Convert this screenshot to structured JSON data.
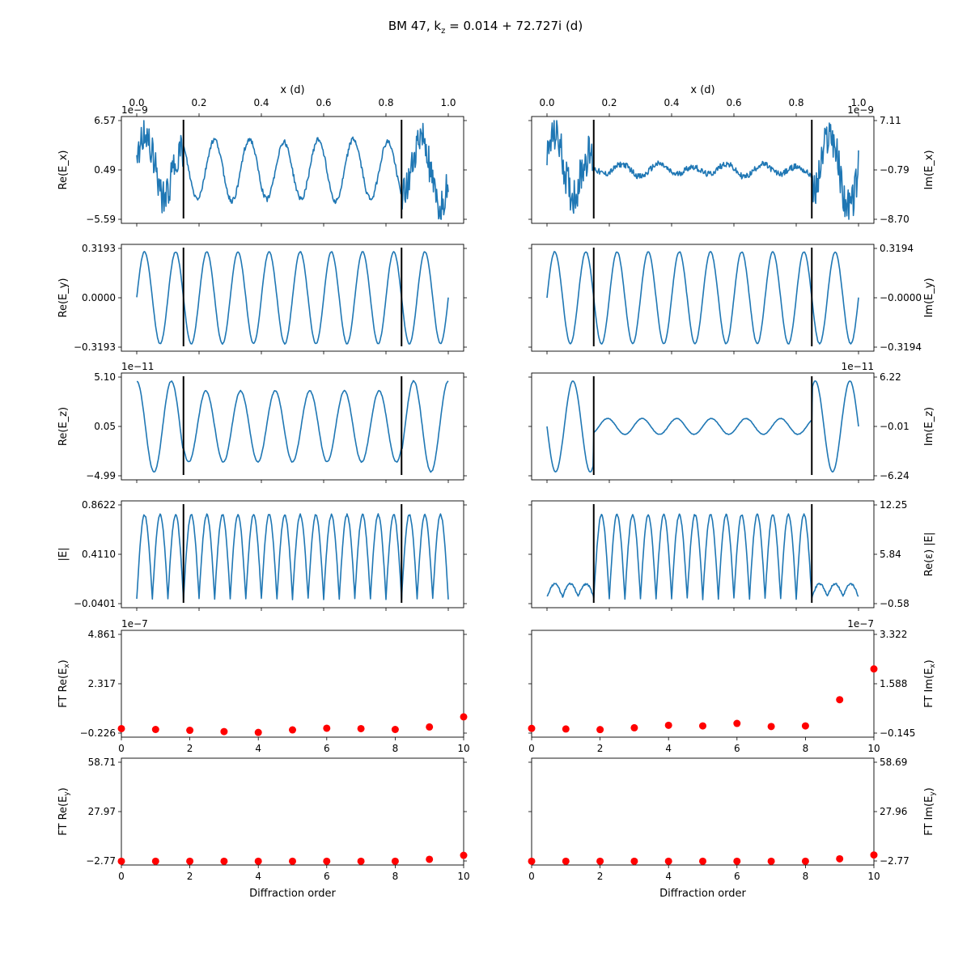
{
  "figure": {
    "title_main": "BM 47, k",
    "title_sub": "z",
    "title_rest": " =   0.014 +  72.727i (d)",
    "top_xlabel": "x (d)",
    "bottom_xlabel": "Diffraction order",
    "line_color": "#1f77b4",
    "marker_color": "#ff0000",
    "boundary_color": "#000000"
  },
  "chart_data": [
    {
      "id": "re_ex",
      "type": "line",
      "ylabel": "Re(E_x)",
      "yticks": [
        "6.57",
        "0.49",
        "−5.59"
      ],
      "ylim": [
        -5.59,
        6.57
      ],
      "offset": "1e−9",
      "side": "left",
      "xlim": [
        0,
        1
      ],
      "xticks": [
        "0.0",
        "0.2",
        "0.4",
        "0.6",
        "0.8",
        "1.0"
      ],
      "boundaries": [
        0.15,
        0.85
      ],
      "series": {
        "kind": "noisy",
        "periods": 9,
        "amp_center": 0.6,
        "amp_edge": 0.55,
        "noise": 0.35,
        "phase": 0.0
      }
    },
    {
      "id": "im_ex",
      "type": "line",
      "ylabel": "Im(E_x)",
      "yticks": [
        "7.11",
        "−0.79",
        "−8.70"
      ],
      "ylim": [
        -8.7,
        7.11
      ],
      "offset": "1e−9",
      "side": "right",
      "xlim": [
        0,
        1
      ],
      "xticks": [
        "0.0",
        "0.2",
        "0.4",
        "0.6",
        "0.8",
        "1.0"
      ],
      "boundaries": [
        0.15,
        0.85
      ],
      "series": {
        "kind": "noisy",
        "periods": 9,
        "amp_center": 0.1,
        "amp_edge": 0.55,
        "noise": 0.4,
        "phase": 0.3
      }
    },
    {
      "id": "re_ey",
      "type": "line",
      "ylabel": "Re(E_y)",
      "yticks": [
        "0.3193",
        "0.0000",
        "−0.3193"
      ],
      "ylim": [
        -0.3193,
        0.3193
      ],
      "side": "left",
      "xlim": [
        0,
        1
      ],
      "boundaries": [
        0.15,
        0.85
      ],
      "series": {
        "kind": "sine",
        "periods": 10,
        "amp_center": 0.93,
        "amp_edge": 0.93,
        "noise": 0.02,
        "phase": 0.0
      }
    },
    {
      "id": "im_ey",
      "type": "line",
      "ylabel": "Im(E_y)",
      "yticks": [
        "0.3194",
        "−0.0000",
        "−0.3194"
      ],
      "ylim": [
        -0.3194,
        0.3194
      ],
      "side": "right",
      "xlim": [
        0,
        1
      ],
      "boundaries": [
        0.15,
        0.85
      ],
      "series": {
        "kind": "sine",
        "periods": 10,
        "amp_center": 0.93,
        "amp_edge": 0.93,
        "noise": 0.02,
        "phase": 0.0
      }
    },
    {
      "id": "re_ez",
      "type": "line",
      "ylabel": "Re(E_z)",
      "yticks": [
        "5.10",
        "0.05",
        "−4.99"
      ],
      "ylim": [
        -4.99,
        5.1
      ],
      "offset": "1e−11",
      "side": "left",
      "xlim": [
        0,
        1
      ],
      "boundaries": [
        0.15,
        0.85
      ],
      "series": {
        "kind": "cos",
        "periods": 9,
        "amp_center": 0.72,
        "amp_edge": 0.92,
        "noise": 0.02,
        "phase": 0.0
      }
    },
    {
      "id": "im_ez",
      "type": "line",
      "ylabel": "Im(E_z)",
      "yticks": [
        "6.22",
        "−0.01",
        "−6.24"
      ],
      "ylim": [
        -6.24,
        6.22
      ],
      "offset": "1e−11",
      "side": "right",
      "xlim": [
        0,
        1
      ],
      "boundaries": [
        0.15,
        0.85
      ],
      "series": {
        "kind": "sine_neg",
        "periods": 9,
        "amp_center": 0.16,
        "amp_edge": 0.92,
        "noise": 0.01,
        "phase": 0.0
      }
    },
    {
      "id": "abs_e",
      "type": "line",
      "ylabel": "|E|",
      "yticks": [
        "0.8622",
        "0.4110",
        "−0.0401"
      ],
      "ylim": [
        -0.0401,
        0.8622
      ],
      "side": "left",
      "xlim": [
        0,
        1
      ],
      "boundaries": [
        0.15,
        0.85
      ],
      "series": {
        "kind": "abs",
        "periods": 20,
        "amp_center": 0.85,
        "amp_edge": 0.85,
        "noise": 0.04,
        "phase": 0.0
      }
    },
    {
      "id": "re_eps_abs_e",
      "type": "line",
      "ylabel": "Re(ε) |E|",
      "yticks": [
        "12.25",
        "5.84",
        "−0.58"
      ],
      "ylim": [
        -0.58,
        12.25
      ],
      "side": "right",
      "xlim": [
        0,
        1
      ],
      "boundaries": [
        0.15,
        0.85
      ],
      "series": {
        "kind": "abs_eps",
        "periods": 20,
        "amp_center": 0.85,
        "amp_edge": 0.13,
        "noise": 0.04,
        "phase": 0.0
      }
    },
    {
      "id": "ft_re_ex",
      "type": "scatter",
      "ylabel": "FT Re(E",
      "ylabel_sub": "x",
      "yticks": [
        "4.861",
        "2.317",
        "−0.226"
      ],
      "ylim": [
        -0.226,
        4.861
      ],
      "offset": "1e−7",
      "side": "left",
      "xlim": [
        0,
        10
      ],
      "xticks": [
        "0",
        "2",
        "4",
        "6",
        "8",
        "10"
      ],
      "x": [
        0,
        1,
        2,
        3,
        4,
        5,
        6,
        7,
        8,
        9,
        10
      ],
      "y": [
        0.18,
        0.14,
        0.1,
        0.04,
        0.0,
        0.12,
        0.2,
        0.18,
        0.14,
        0.26,
        0.74
      ]
    },
    {
      "id": "ft_im_ex",
      "type": "scatter",
      "ylabel": "FT Im(E",
      "ylabel_sub": "x",
      "yticks": [
        "3.322",
        "1.588",
        "−0.145"
      ],
      "ylim": [
        -0.145,
        3.322
      ],
      "offset": "1e−7",
      "side": "right",
      "xlim": [
        0,
        10
      ],
      "xticks": [
        "0",
        "2",
        "4",
        "6",
        "8",
        "10"
      ],
      "x": [
        0,
        1,
        2,
        3,
        4,
        5,
        6,
        7,
        8,
        9,
        10
      ],
      "y": [
        0.14,
        0.12,
        0.1,
        0.16,
        0.24,
        0.22,
        0.3,
        0.2,
        0.22,
        1.07,
        2.07
      ]
    },
    {
      "id": "ft_re_ey",
      "type": "scatter",
      "ylabel": "FT Re(E",
      "ylabel_sub": "y",
      "yticks": [
        "58.71",
        "27.97",
        "−2.77"
      ],
      "ylim": [
        -2.77,
        58.71
      ],
      "side": "left",
      "xlim": [
        0,
        10
      ],
      "xticks": [
        "0",
        "2",
        "4",
        "6",
        "8",
        "10"
      ],
      "xlabel": "Diffraction order",
      "x": [
        0,
        1,
        2,
        3,
        4,
        5,
        6,
        7,
        8,
        9,
        10
      ],
      "y": [
        -0.6,
        -0.6,
        -0.6,
        -0.6,
        -0.6,
        -0.6,
        -0.6,
        -0.6,
        -0.6,
        0.5,
        2.8
      ]
    },
    {
      "id": "ft_im_ey",
      "type": "scatter",
      "ylabel": "FT Im(E",
      "ylabel_sub": "y",
      "yticks": [
        "58.69",
        "27.96",
        "−2.77"
      ],
      "ylim": [
        -2.77,
        58.69
      ],
      "side": "right",
      "xlim": [
        0,
        10
      ],
      "xticks": [
        "0",
        "2",
        "4",
        "6",
        "8",
        "10"
      ],
      "xlabel": "Diffraction order",
      "x": [
        0,
        1,
        2,
        3,
        4,
        5,
        6,
        7,
        8,
        9,
        10
      ],
      "y": [
        -0.6,
        -0.6,
        -0.6,
        -0.6,
        -0.6,
        -0.6,
        -0.6,
        -0.6,
        -0.6,
        0.8,
        3.0
      ]
    }
  ]
}
